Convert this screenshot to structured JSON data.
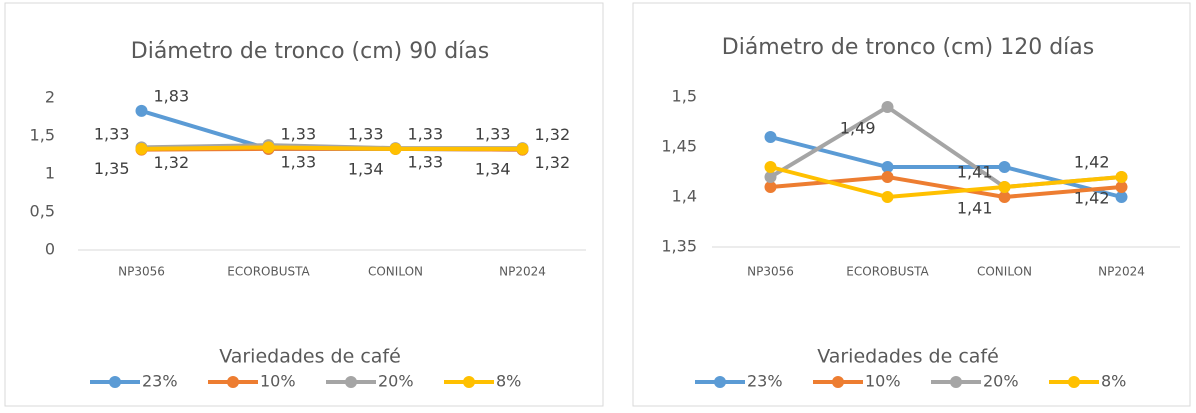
{
  "chart_data": [
    {
      "type": "line",
      "title": "Diámetro de tronco (cm) 90 días",
      "x_label": "Variedades de café",
      "categories": [
        "NP3056",
        "ECOROBUSTA",
        "CONILON",
        "NP2024"
      ],
      "ylim": [
        0,
        2
      ],
      "yticks": [
        0,
        {
          "value": 0.5,
          "label": "0,5"
        },
        1,
        {
          "value": 1.5,
          "label": "1,5"
        },
        2
      ],
      "grid": false,
      "legend": "bottom",
      "series": [
        {
          "name": "23%",
          "color": "#5b9bd5",
          "values": [
            1.83,
            1.33,
            1.33,
            1.32
          ],
          "value_labels": [
            "1,83",
            "1,33",
            "1,33",
            "1,32"
          ]
        },
        {
          "name": "10%",
          "color": "#ed7d31",
          "values": [
            1.32,
            1.33,
            1.33,
            1.32
          ],
          "value_labels": [
            "1,32",
            "1,33",
            "1,33",
            "1,32"
          ]
        },
        {
          "name": "20%",
          "color": "#a5a5a5",
          "values": [
            1.35,
            1.38,
            1.34,
            1.34
          ],
          "value_labels": [
            "1,35",
            null,
            "1,34",
            "1,34"
          ]
        },
        {
          "name": "8%",
          "color": "#ffc000",
          "values": [
            1.33,
            1.35,
            1.33,
            1.33
          ],
          "value_labels": [
            "1,33",
            null,
            "1,33",
            "1,33"
          ]
        }
      ]
    },
    {
      "type": "line",
      "title": "Diámetro de tronco (cm) 120 días",
      "x_label": "Variedades de café",
      "categories": [
        "NP3056",
        "ECOROBUSTA",
        "CONILON",
        "NP2024"
      ],
      "ylim": [
        1.35,
        1.5
      ],
      "yticks": [
        {
          "value": 1.35,
          "label": "1,35"
        },
        {
          "value": 1.4,
          "label": "1,4"
        },
        {
          "value": 1.45,
          "label": "1,45"
        },
        {
          "value": 1.5,
          "label": "1,5"
        }
      ],
      "grid": false,
      "legend": "bottom",
      "series": [
        {
          "name": "23%",
          "color": "#5b9bd5",
          "values": [
            1.46,
            1.43,
            1.43,
            1.4
          ]
        },
        {
          "name": "10%",
          "color": "#ed7d31",
          "values": [
            1.41,
            1.42,
            1.4,
            1.41
          ]
        },
        {
          "name": "20%",
          "color": "#a5a5a5",
          "values": [
            1.42,
            1.49,
            1.41,
            1.42
          ],
          "value_labels": [
            null,
            "1,49",
            "1,41",
            "1,42"
          ]
        },
        {
          "name": "8%",
          "color": "#ffc000",
          "values": [
            1.43,
            1.4,
            1.41,
            1.42
          ],
          "value_labels": [
            null,
            null,
            "1,41",
            "1,42"
          ]
        }
      ]
    }
  ]
}
